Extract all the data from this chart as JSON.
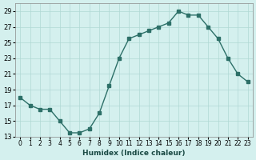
{
  "x": [
    0,
    1,
    2,
    3,
    4,
    5,
    6,
    7,
    8,
    9,
    10,
    11,
    12,
    13,
    14,
    15,
    16,
    17,
    18,
    19,
    20,
    21,
    22,
    23
  ],
  "y": [
    18,
    17,
    16.5,
    16.5,
    15,
    13.5,
    13.5,
    14,
    16,
    19.5,
    23,
    25.5,
    26,
    26.5,
    27,
    27.5,
    29,
    28.5,
    28.5,
    27,
    25.5,
    23,
    21,
    20
  ],
  "line_color": "#2d7068",
  "marker_color": "#2d7068",
  "bg_color": "#d4f0ee",
  "grid_color": "#b0d8d4",
  "xlabel": "Humidex (Indice chaleur)",
  "ylabel": "",
  "ylim": [
    13,
    30
  ],
  "yticks": [
    13,
    15,
    17,
    19,
    21,
    23,
    25,
    27,
    29
  ],
  "xlim": [
    -0.5,
    23.5
  ],
  "xtick_labels": [
    "0",
    "1",
    "2",
    "3",
    "4",
    "5",
    "6",
    "7",
    "8",
    "9",
    "10",
    "11",
    "12",
    "13",
    "14",
    "15",
    "16",
    "17",
    "18",
    "19",
    "20",
    "21",
    "22",
    "23"
  ]
}
